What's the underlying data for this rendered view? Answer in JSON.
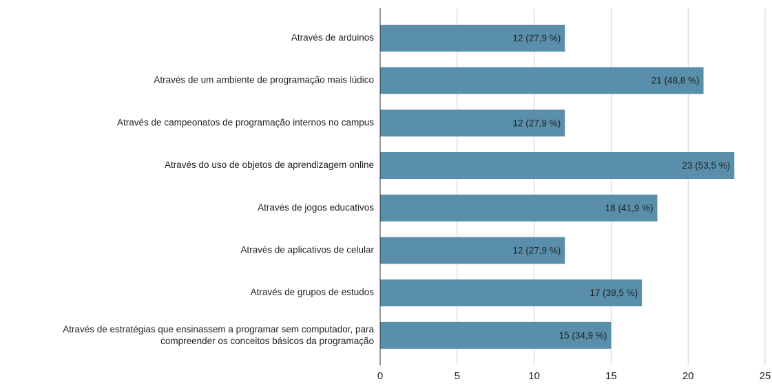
{
  "chart_data": {
    "type": "bar",
    "orientation": "horizontal",
    "categories": [
      "Através de arduinos",
      "Através de um ambiente de programação mais lúdico",
      "Através de campeonatos de programação internos no campus",
      "Através do uso de objetos de aprendizagem online",
      "Através de jogos educativos",
      "Através de aplicativos de celular",
      "Através de grupos de estudos",
      "Através de estratégias que ensinassem a programar sem computador, para\ncompreender os conceitos básicos da programação"
    ],
    "values": [
      12,
      21,
      12,
      23,
      18,
      12,
      17,
      15
    ],
    "value_labels": [
      "12 (27,9 %)",
      "21 (48,8 %)",
      "12 (27,9 %)",
      "23 (53,5 %)",
      "18 (41,9 %)",
      "12 (27,9 %)",
      "17 (39,5 %)",
      "15 (34,9 %)"
    ],
    "color": "#5a8fab",
    "xlim": [
      0,
      25
    ],
    "xticks": [
      0,
      5,
      10,
      15,
      20,
      25
    ],
    "grid": true
  }
}
